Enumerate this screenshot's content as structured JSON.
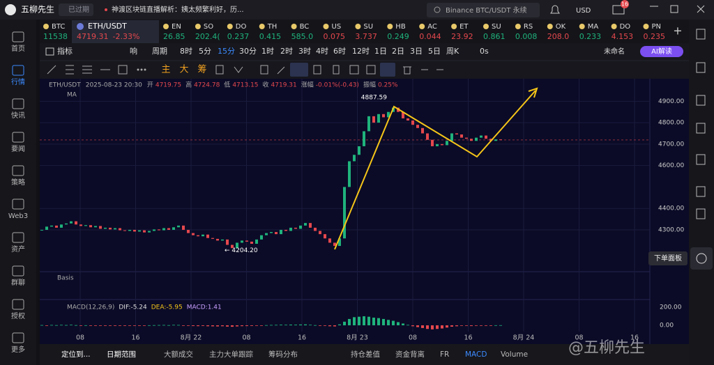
{
  "topbar": {
    "brand": "五柳先生",
    "status": "已过期",
    "news": "神渡区块链直播解析：姨太频繁利好，历...",
    "search": "Binance BTC/USDT 永续",
    "currency": "USD",
    "badge": "16"
  },
  "nav": [
    "首页",
    "行情",
    "快讯",
    "要闻",
    "策略",
    "Web3",
    "资产",
    "群聊",
    "授权",
    "更多"
  ],
  "active_nav": 1,
  "tickers": [
    {
      "name": "BTC",
      "price": "11538",
      "up": true
    },
    {
      "name": "EN",
      "price": "26.85",
      "up": true
    },
    {
      "name": "SO",
      "price": "202.4(",
      "up": true
    },
    {
      "name": "DO",
      "price": "0.237",
      "up": true
    },
    {
      "name": "TH",
      "price": "0.415",
      "up": true
    },
    {
      "name": "BC",
      "price": "585.0",
      "up": true
    },
    {
      "name": "US",
      "price": "0.075",
      "up": false
    },
    {
      "name": "SU",
      "price": "3.737",
      "up": false
    },
    {
      "name": "HB",
      "price": "0.249",
      "up": true
    },
    {
      "name": "AC",
      "price": "0.044",
      "up": false
    },
    {
      "name": "ET",
      "price": "23.92",
      "up": false
    },
    {
      "name": "SU",
      "price": "0.861",
      "up": true
    },
    {
      "name": "RS",
      "price": "0.008",
      "up": true
    },
    {
      "name": "OK",
      "price": "208.0",
      "up": false
    },
    {
      "name": "MA",
      "price": "0.233",
      "up": true
    },
    {
      "name": "DO",
      "price": "4.153",
      "up": false
    },
    {
      "name": "PN",
      "price": "0.235",
      "up": false
    }
  ],
  "active_ticker": {
    "name": "ETH/USDT",
    "price": "4719.31",
    "change": "-2.33%"
  },
  "toolbar": {
    "indicator": "指标",
    "alert": "响",
    "period": "周期",
    "intervals": [
      "8时",
      "5分",
      "15分",
      "30分",
      "1时",
      "2时",
      "3时",
      "4时",
      "6时",
      "12时",
      "1日",
      "2日",
      "3日",
      "5日",
      "周K"
    ],
    "active_interval": 2,
    "timer": "0s",
    "layout": "未命名",
    "ai": "AI解读"
  },
  "tool_labels": [
    "主",
    "大",
    "筹"
  ],
  "side_tip": "下单面板",
  "bottom_tabs": [
    "定位到...",
    "日期范围",
    "大额成交",
    "主力大单跟踪",
    "筹码分布",
    "持仓差值",
    "资金背离",
    "FR",
    "MACD",
    "Volume"
  ],
  "active_tab": 8,
  "watermark": "@五柳先生",
  "chart_data": {
    "type": "candlestick",
    "legend": [
      {
        "label": "ETH/USDT"
      },
      {
        "label": "2025-08-23 20:30"
      },
      {
        "label": "开",
        "value": "4719.75"
      },
      {
        "label": "高",
        "value": "4724.78"
      },
      {
        "label": "低",
        "value": "4713.15"
      },
      {
        "label": "收",
        "value": "4719.31"
      },
      {
        "label": "涨幅",
        "value": "-0.01%(-0.43)"
      },
      {
        "label": "振幅",
        "value": "0.25%"
      }
    ],
    "ma_label": "MA",
    "closes": [
      4300,
      4315,
      4320,
      4310,
      4325,
      4330,
      4340,
      4325,
      4318,
      4322,
      4312,
      4318,
      4305,
      4310,
      4302,
      4308,
      4298,
      4295,
      4300,
      4292,
      4298,
      4288,
      4295,
      4302,
      4298,
      4308,
      4300,
      4312,
      4320,
      4300,
      4285,
      4275,
      4270,
      4278,
      4262,
      4258,
      4250,
      4255,
      4230,
      4215,
      4240,
      4250,
      4245,
      4235,
      4255,
      4275,
      4285,
      4290,
      4280,
      4300,
      4295,
      4310,
      4305,
      4320,
      4332,
      4310,
      4295,
      4280,
      4260,
      4240,
      4225,
      4260,
      4500,
      4620,
      4650,
      4690,
      4760,
      4830,
      4800,
      4840,
      4825,
      4850,
      4870,
      4850,
      4820,
      4810,
      4790,
      4775,
      4750,
      4720,
      4690,
      4700,
      4695,
      4715,
      4750,
      4745,
      4730,
      4725,
      4715,
      4730,
      4740,
      4725,
      4715,
      4722,
      4719.31
    ],
    "up_color": "#1fb37c",
    "down_color": "#e5484d",
    "ylim": [
      4105,
      5005
    ],
    "yticks": [
      {
        "value": 4300,
        "label": "4300.00"
      },
      {
        "value": 4400,
        "label": "4400.00"
      },
      {
        "value": 4600,
        "label": "4600.00"
      },
      {
        "value": 4700,
        "label": "4700.00"
      },
      {
        "value": 4800,
        "label": "4800.00"
      },
      {
        "value": 4900,
        "label": "4900.00"
      }
    ],
    "grid": true,
    "annotations": [
      {
        "value": 4887.59,
        "label": "4887.59"
      },
      {
        "value": 4204.2,
        "label": "← 4204.20"
      }
    ],
    "x_labels": [
      "08",
      "16",
      "8月 22",
      "08",
      "16",
      "8月 23",
      "08",
      "16",
      "8月 24",
      "08",
      "16"
    ],
    "basis_label": "Basis",
    "macd": {
      "label": "MACD(12,26,9)",
      "dif": "DIF:-5.24",
      "dea": "DEA:-5.95",
      "macd": "MACD:1.41",
      "hist": [
        3,
        -2,
        4,
        2,
        5,
        3,
        6,
        2,
        -1,
        1,
        -3,
        -2,
        -4,
        -3,
        -5,
        -2,
        -4,
        -6,
        -3,
        -5,
        -2,
        -3,
        1,
        2,
        3,
        4,
        2,
        5,
        4,
        -2,
        -5,
        -8,
        -9,
        -7,
        -10,
        -11,
        -12,
        -10,
        -14,
        -16,
        -12,
        -9,
        -8,
        -7,
        -4,
        -1,
        2,
        4,
        5,
        7,
        6,
        8,
        7,
        9,
        10,
        6,
        2,
        -2,
        -6,
        -10,
        -12,
        10,
        40,
        70,
        90,
        95,
        100,
        95,
        85,
        80,
        70,
        60,
        50,
        35,
        20,
        5,
        -10,
        -20,
        -30,
        -40,
        -45,
        -40,
        -35,
        -25,
        -15,
        -10,
        -5,
        -5,
        -8,
        -3,
        -2,
        -5,
        -4,
        1,
        1.41
      ],
      "ylim": [
        -69,
        285
      ],
      "yticks": [
        {
          "value": 0,
          "label": "0.00"
        },
        {
          "value": 200,
          "label": "200.00"
        }
      ]
    }
  }
}
